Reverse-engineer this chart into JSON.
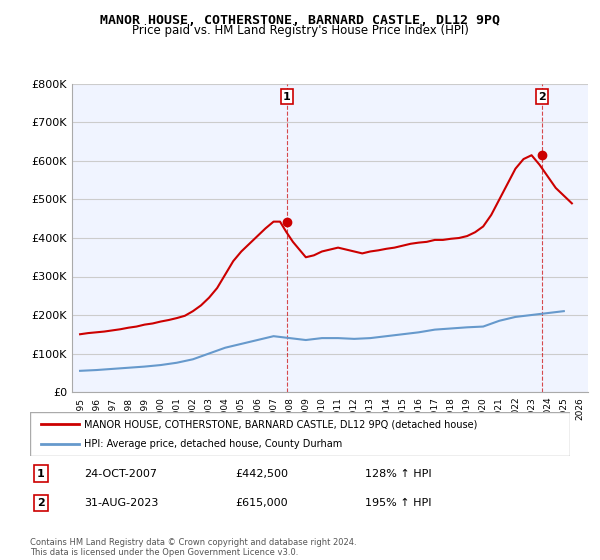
{
  "title": "MANOR HOUSE, COTHERSTONE, BARNARD CASTLE, DL12 9PQ",
  "subtitle": "Price paid vs. HM Land Registry's House Price Index (HPI)",
  "legend_line1": "MANOR HOUSE, COTHERSTONE, BARNARD CASTLE, DL12 9PQ (detached house)",
  "legend_line2": "HPI: Average price, detached house, County Durham",
  "footnote": "Contains HM Land Registry data © Crown copyright and database right 2024.\nThis data is licensed under the Open Government Licence v3.0.",
  "sale1_label": "1",
  "sale1_date": "24-OCT-2007",
  "sale1_price": "£442,500",
  "sale1_hpi": "128% ↑ HPI",
  "sale2_label": "2",
  "sale2_date": "31-AUG-2023",
  "sale2_price": "£615,000",
  "sale2_hpi": "195% ↑ HPI",
  "ylim": [
    0,
    800000
  ],
  "yticks": [
    0,
    100000,
    200000,
    300000,
    400000,
    500000,
    600000,
    700000,
    800000
  ],
  "xlim_left": 1994.5,
  "xlim_right": 2026.5,
  "red_color": "#cc0000",
  "blue_color": "#6699cc",
  "bg_color": "#f0f4ff",
  "grid_color": "#cccccc",
  "hpi_years": [
    1995,
    1996,
    1997,
    1998,
    1999,
    2000,
    2001,
    2002,
    2003,
    2004,
    2005,
    2006,
    2007,
    2008,
    2009,
    2010,
    2011,
    2012,
    2013,
    2014,
    2015,
    2016,
    2017,
    2018,
    2019,
    2020,
    2021,
    2022,
    2023,
    2024,
    2025
  ],
  "hpi_values": [
    55000,
    57000,
    60000,
    63000,
    66000,
    70000,
    76000,
    85000,
    100000,
    115000,
    125000,
    135000,
    145000,
    140000,
    135000,
    140000,
    140000,
    138000,
    140000,
    145000,
    150000,
    155000,
    162000,
    165000,
    168000,
    170000,
    185000,
    195000,
    200000,
    205000,
    210000
  ],
  "price_years": [
    1995.0,
    1995.5,
    1996.0,
    1996.5,
    1997.0,
    1997.5,
    1998.0,
    1998.5,
    1999.0,
    1999.5,
    2000.0,
    2000.5,
    2001.0,
    2001.5,
    2002.0,
    2002.5,
    2003.0,
    2003.5,
    2004.0,
    2004.5,
    2005.0,
    2005.5,
    2006.0,
    2006.5,
    2007.0,
    2007.4,
    2007.8,
    2008.2,
    2008.6,
    2009.0,
    2009.5,
    2010.0,
    2010.5,
    2011.0,
    2011.5,
    2012.0,
    2012.5,
    2013.0,
    2013.5,
    2014.0,
    2014.5,
    2015.0,
    2015.5,
    2016.0,
    2016.5,
    2017.0,
    2017.5,
    2018.0,
    2018.5,
    2019.0,
    2019.5,
    2020.0,
    2020.5,
    2021.0,
    2021.5,
    2022.0,
    2022.5,
    2023.0,
    2023.5,
    2024.0,
    2024.5,
    2025.0,
    2025.5
  ],
  "price_values": [
    150000,
    153000,
    155000,
    157000,
    160000,
    163000,
    167000,
    170000,
    175000,
    178000,
    183000,
    187000,
    192000,
    198000,
    210000,
    225000,
    245000,
    270000,
    305000,
    340000,
    365000,
    385000,
    405000,
    425000,
    442500,
    442500,
    415000,
    390000,
    370000,
    350000,
    355000,
    365000,
    370000,
    375000,
    370000,
    365000,
    360000,
    365000,
    368000,
    372000,
    375000,
    380000,
    385000,
    388000,
    390000,
    395000,
    395000,
    398000,
    400000,
    405000,
    415000,
    430000,
    460000,
    500000,
    540000,
    580000,
    605000,
    615000,
    590000,
    560000,
    530000,
    510000,
    490000
  ],
  "sale1_x": 2007.82,
  "sale1_y": 442500,
  "sale2_x": 2023.67,
  "sale2_y": 615000
}
